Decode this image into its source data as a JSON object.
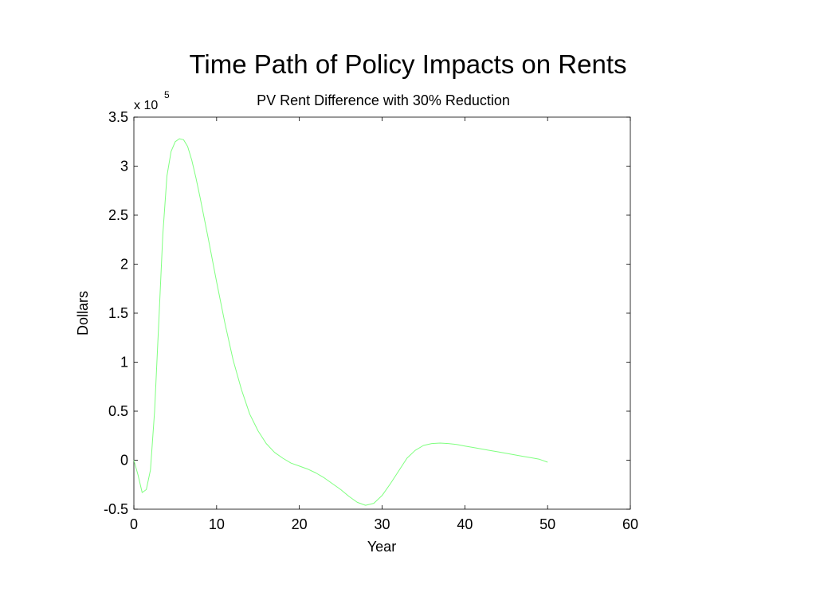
{
  "page_title": "Time Path of Policy Impacts on Rents",
  "chart_data": {
    "type": "line",
    "title": "PV Rent Difference with 30% Reduction",
    "xlabel": "Year",
    "ylabel": "Dollars",
    "y_multiplier": {
      "base": "x 10",
      "exponent": "5"
    },
    "xlim": [
      0,
      60
    ],
    "ylim": [
      -0.5,
      3.5
    ],
    "x_ticks": [
      0,
      10,
      20,
      30,
      40,
      50,
      60
    ],
    "x_tick_labels": [
      "0",
      "10",
      "20",
      "30",
      "40",
      "50",
      "60"
    ],
    "y_ticks": [
      -0.5,
      0,
      0.5,
      1,
      1.5,
      2,
      2.5,
      3,
      3.5
    ],
    "y_tick_labels": [
      "-0.5",
      "0",
      "0.5",
      "1",
      "1.5",
      "2",
      "2.5",
      "3",
      "3.5"
    ],
    "grid": false,
    "box": true,
    "series": [
      {
        "color": "#7fff7f",
        "x": [
          0,
          0.5,
          1,
          1.5,
          2,
          2.5,
          3,
          3.5,
          4,
          4.5,
          5,
          5.5,
          6,
          6.5,
          7,
          7.5,
          8,
          9,
          10,
          11,
          12,
          13,
          14,
          15,
          16,
          17,
          18,
          19,
          20,
          21,
          22,
          23,
          24,
          25,
          26,
          27,
          28,
          29,
          30,
          31,
          32,
          33,
          34,
          35,
          36,
          37,
          38,
          39,
          40,
          41,
          42,
          43,
          44,
          45,
          46,
          47,
          48,
          49,
          50
        ],
        "y": [
          0,
          -0.15,
          -0.33,
          -0.3,
          -0.1,
          0.5,
          1.4,
          2.3,
          2.9,
          3.15,
          3.25,
          3.28,
          3.27,
          3.2,
          3.06,
          2.88,
          2.68,
          2.26,
          1.82,
          1.4,
          1.02,
          0.72,
          0.47,
          0.3,
          0.17,
          0.08,
          0.02,
          -0.03,
          -0.06,
          -0.09,
          -0.13,
          -0.18,
          -0.24,
          -0.3,
          -0.37,
          -0.43,
          -0.46,
          -0.44,
          -0.36,
          -0.24,
          -0.11,
          0.02,
          0.1,
          0.15,
          0.17,
          0.175,
          0.17,
          0.16,
          0.145,
          0.13,
          0.115,
          0.1,
          0.085,
          0.07,
          0.055,
          0.04,
          0.025,
          0.01,
          -0.02
        ]
      }
    ]
  }
}
